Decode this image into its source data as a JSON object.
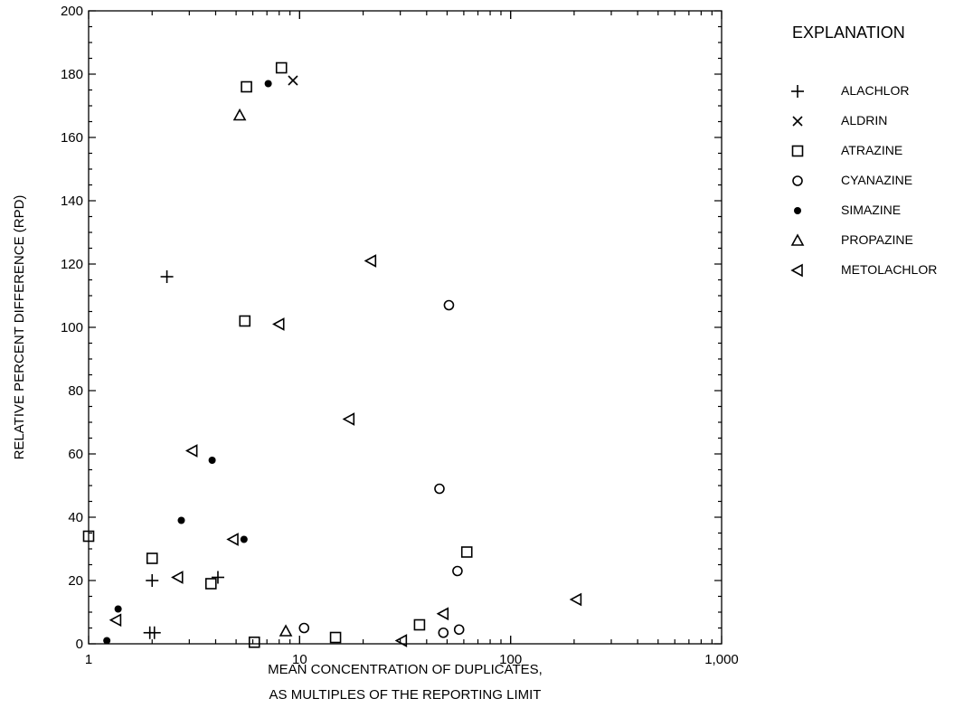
{
  "chart_data": {
    "type": "scatter",
    "x_scale": "log",
    "xlim": [
      1,
      1000
    ],
    "ylim": [
      0,
      200
    ],
    "x_ticks": [
      1,
      10,
      100,
      1000
    ],
    "x_tick_labels": [
      "1",
      "10",
      "100",
      "1,000"
    ],
    "y_ticks": [
      0,
      20,
      40,
      60,
      80,
      100,
      120,
      140,
      160,
      180,
      200
    ],
    "y_tick_labels": [
      "0",
      "20",
      "40",
      "60",
      "80",
      "100",
      "120",
      "140",
      "160",
      "180",
      "200"
    ],
    "xlabel": [
      "MEAN CONCENTRATION OF DUPLICATES,",
      "AS MULTIPLES OF THE REPORTING LIMIT"
    ],
    "ylabel": "RELATIVE PERCENT DIFFERENCE (RPD)",
    "grid": false,
    "legend_title": "EXPLANATION",
    "legend_position": "right",
    "series": [
      {
        "name": "ALACHLOR",
        "marker": "plus",
        "points": [
          [
            2.35,
            116
          ],
          [
            2.0,
            20
          ],
          [
            4.1,
            21
          ],
          [
            1.95,
            3.5
          ],
          [
            2.05,
            3.5
          ]
        ]
      },
      {
        "name": "ALDRIN",
        "marker": "x",
        "points": [
          [
            9.3,
            178
          ]
        ]
      },
      {
        "name": "ATRAZINE",
        "marker": "square",
        "points": [
          [
            8.2,
            182
          ],
          [
            5.6,
            176
          ],
          [
            5.5,
            102
          ],
          [
            1.0,
            34
          ],
          [
            2.0,
            27
          ],
          [
            3.8,
            19
          ],
          [
            6.1,
            0.5
          ],
          [
            14.8,
            2
          ],
          [
            37,
            6
          ],
          [
            62,
            29
          ]
        ]
      },
      {
        "name": "CYANAZINE",
        "marker": "circle",
        "points": [
          [
            51,
            107
          ],
          [
            46,
            49
          ],
          [
            56,
            23
          ],
          [
            10.5,
            5
          ],
          [
            48,
            3.5
          ],
          [
            57,
            4.5
          ]
        ]
      },
      {
        "name": "SIMAZINE",
        "marker": "dot",
        "points": [
          [
            7.1,
            177
          ],
          [
            3.85,
            58
          ],
          [
            2.75,
            39
          ],
          [
            5.45,
            33
          ],
          [
            1.38,
            11
          ],
          [
            1.22,
            1
          ]
        ]
      },
      {
        "name": "PROPAZINE",
        "marker": "triangle-up",
        "points": [
          [
            5.2,
            167
          ],
          [
            8.6,
            4
          ]
        ]
      },
      {
        "name": "METOLACHLOR",
        "marker": "triangle-left",
        "points": [
          [
            21.8,
            121
          ],
          [
            8.0,
            101
          ],
          [
            17.2,
            71
          ],
          [
            3.1,
            61
          ],
          [
            4.85,
            33
          ],
          [
            2.65,
            21
          ],
          [
            1.35,
            7.5
          ],
          [
            48,
            9.5
          ],
          [
            30.5,
            1
          ],
          [
            205,
            14
          ]
        ]
      }
    ]
  }
}
